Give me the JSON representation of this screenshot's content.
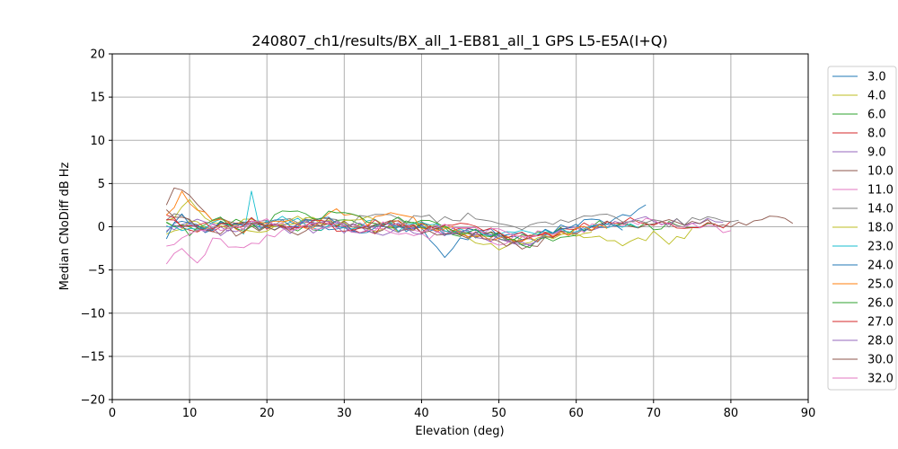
{
  "chart_data": {
    "type": "line",
    "title": "240807_ch1/results/BX_all_1-EB81_all_1 GPS L5-E5A(I+Q)",
    "xlabel": "Elevation (deg)",
    "ylabel": "Median CNoDiff dB Hz",
    "xlim": [
      0,
      90
    ],
    "ylim": [
      -20,
      20
    ],
    "xticks": [
      0,
      10,
      20,
      30,
      40,
      50,
      60,
      70,
      80,
      90
    ],
    "yticks": [
      -20,
      -15,
      -10,
      -5,
      0,
      5,
      10,
      15,
      20
    ],
    "grid": true,
    "legend_position": "right",
    "series": [
      {
        "name": "3.0",
        "color": "#1f77b4",
        "x_start": 7,
        "x_end": 69,
        "anchors": [
          [
            7,
            -0.8
          ],
          [
            9,
            0.6
          ],
          [
            12,
            -0.5
          ],
          [
            16,
            0.8
          ],
          [
            20,
            -0.3
          ],
          [
            25,
            0.4
          ],
          [
            30,
            -0.6
          ],
          [
            35,
            0.2
          ],
          [
            40,
            -0.4
          ],
          [
            43,
            -3.2
          ],
          [
            45,
            -1.2
          ],
          [
            50,
            -0.5
          ],
          [
            55,
            -1.4
          ],
          [
            60,
            0.4
          ],
          [
            65,
            0.9
          ],
          [
            69,
            2.3
          ]
        ]
      },
      {
        "name": "4.0",
        "color": "#bcbd22",
        "x_start": 7,
        "x_end": 75,
        "anchors": [
          [
            7,
            0.5
          ],
          [
            10,
            2.8
          ],
          [
            13,
            0.2
          ],
          [
            18,
            -0.6
          ],
          [
            24,
            0.8
          ],
          [
            30,
            0.2
          ],
          [
            36,
            -0.4
          ],
          [
            42,
            0.3
          ],
          [
            47,
            -0.9
          ],
          [
            52,
            -1.6
          ],
          [
            58,
            -1.1
          ],
          [
            63,
            -1.4
          ],
          [
            66,
            -2.3
          ],
          [
            70,
            -1.0
          ],
          [
            72,
            -1.7
          ],
          [
            75,
            -0.6
          ]
        ]
      },
      {
        "name": "6.0",
        "color": "#2ca02c",
        "x_start": 7,
        "x_end": 78,
        "anchors": [
          [
            7,
            0.2
          ],
          [
            10,
            -0.5
          ],
          [
            15,
            0.5
          ],
          [
            20,
            0.1
          ],
          [
            25,
            -0.3
          ],
          [
            30,
            0.6
          ],
          [
            35,
            -0.2
          ],
          [
            40,
            0.4
          ],
          [
            45,
            -0.6
          ],
          [
            50,
            -1.2
          ],
          [
            55,
            -0.9
          ],
          [
            60,
            -0.3
          ],
          [
            65,
            0.5
          ],
          [
            70,
            0.1
          ],
          [
            75,
            0.4
          ],
          [
            78,
            0.2
          ]
        ]
      },
      {
        "name": "8.0",
        "color": "#d62728",
        "x_start": 7,
        "x_end": 80,
        "anchors": [
          [
            7,
            1.0
          ],
          [
            9,
            0.3
          ],
          [
            13,
            -0.6
          ],
          [
            18,
            0.5
          ],
          [
            23,
            -0.2
          ],
          [
            28,
            0.3
          ],
          [
            33,
            -0.5
          ],
          [
            38,
            0.2
          ],
          [
            43,
            -0.3
          ],
          [
            48,
            -0.8
          ],
          [
            53,
            -1.5
          ],
          [
            58,
            -0.6
          ],
          [
            63,
            0.3
          ],
          [
            68,
            0.6
          ],
          [
            74,
            0.2
          ],
          [
            80,
            0.4
          ]
        ]
      },
      {
        "name": "9.0",
        "color": "#9467bd",
        "x_start": 7,
        "x_end": 79,
        "anchors": [
          [
            7,
            -0.3
          ],
          [
            10,
            0.8
          ],
          [
            14,
            -0.4
          ],
          [
            19,
            0.3
          ],
          [
            24,
            -0.6
          ],
          [
            29,
            0.2
          ],
          [
            34,
            -0.8
          ],
          [
            39,
            -0.2
          ],
          [
            44,
            -0.6
          ],
          [
            49,
            -1.0
          ],
          [
            54,
            -1.8
          ],
          [
            59,
            -0.5
          ],
          [
            64,
            0.2
          ],
          [
            69,
            0.8
          ],
          [
            74,
            0.5
          ],
          [
            79,
            0.9
          ]
        ]
      },
      {
        "name": "10.0",
        "color": "#8c564b",
        "x_start": 7,
        "x_end": 88,
        "anchors": [
          [
            7,
            2.0
          ],
          [
            8,
            4.6
          ],
          [
            10,
            3.8
          ],
          [
            12,
            1.2
          ],
          [
            15,
            0.3
          ],
          [
            20,
            -0.4
          ],
          [
            25,
            0.6
          ],
          [
            30,
            0.1
          ],
          [
            35,
            -0.3
          ],
          [
            40,
            0.2
          ],
          [
            45,
            -0.5
          ],
          [
            50,
            -1.2
          ],
          [
            53,
            -3.0
          ],
          [
            56,
            -1.4
          ],
          [
            60,
            -0.3
          ],
          [
            65,
            0.5
          ],
          [
            70,
            0.3
          ],
          [
            75,
            0.6
          ],
          [
            80,
            0.4
          ],
          [
            85,
            0.8
          ],
          [
            88,
            0.6
          ]
        ]
      },
      {
        "name": "11.0",
        "color": "#e377c2",
        "x_start": 7,
        "x_end": 80,
        "anchors": [
          [
            7,
            -3.8
          ],
          [
            9,
            -2.8
          ],
          [
            11,
            -4.0
          ],
          [
            13,
            -1.5
          ],
          [
            17,
            -2.8
          ],
          [
            20,
            -0.8
          ],
          [
            25,
            -0.2
          ],
          [
            30,
            0.5
          ],
          [
            35,
            -0.4
          ],
          [
            40,
            -1.2
          ],
          [
            45,
            -0.6
          ],
          [
            50,
            -1.8
          ],
          [
            55,
            -1.0
          ],
          [
            60,
            -0.4
          ],
          [
            65,
            0.2
          ],
          [
            70,
            0.6
          ],
          [
            75,
            0.2
          ],
          [
            80,
            -0.8
          ]
        ]
      },
      {
        "name": "14.0",
        "color": "#7f7f7f",
        "x_start": 7,
        "x_end": 81,
        "anchors": [
          [
            7,
            1.2
          ],
          [
            10,
            0.6
          ],
          [
            15,
            -0.2
          ],
          [
            20,
            0.4
          ],
          [
            25,
            1.0
          ],
          [
            30,
            0.6
          ],
          [
            35,
            1.0
          ],
          [
            40,
            0.7
          ],
          [
            45,
            1.2
          ],
          [
            48,
            0.8
          ],
          [
            52,
            -0.4
          ],
          [
            56,
            0.3
          ],
          [
            60,
            0.8
          ],
          [
            64,
            1.0
          ],
          [
            68,
            0.6
          ],
          [
            72,
            0.3
          ],
          [
            76,
            0.8
          ],
          [
            81,
            0.5
          ]
        ]
      },
      {
        "name": "18.0",
        "color": "#bcbd22",
        "x_start": 7,
        "x_end": 62,
        "anchors": [
          [
            7,
            -0.5
          ],
          [
            10,
            0.4
          ],
          [
            14,
            -0.3
          ],
          [
            18,
            0.6
          ],
          [
            22,
            0.1
          ],
          [
            26,
            0.8
          ],
          [
            30,
            0.3
          ],
          [
            34,
            0.9
          ],
          [
            38,
            0.2
          ],
          [
            42,
            -0.2
          ],
          [
            46,
            -1.0
          ],
          [
            49,
            -2.5
          ],
          [
            53,
            -1.6
          ],
          [
            57,
            -1.2
          ],
          [
            62,
            -0.8
          ]
        ]
      },
      {
        "name": "23.0",
        "color": "#17becf",
        "x_start": 7,
        "x_end": 68,
        "anchors": [
          [
            7,
            0.3
          ],
          [
            10,
            -0.6
          ],
          [
            14,
            0.4
          ],
          [
            17,
            -0.3
          ],
          [
            18,
            3.8
          ],
          [
            19,
            0.2
          ],
          [
            22,
            1.0
          ],
          [
            26,
            0.2
          ],
          [
            30,
            -0.4
          ],
          [
            34,
            0.4
          ],
          [
            38,
            -0.2
          ],
          [
            42,
            0.2
          ],
          [
            46,
            -0.6
          ],
          [
            50,
            -1.0
          ],
          [
            55,
            -0.8
          ],
          [
            60,
            -0.2
          ],
          [
            64,
            0.4
          ],
          [
            68,
            0.2
          ]
        ]
      },
      {
        "name": "24.0",
        "color": "#1f77b4",
        "x_start": 7,
        "x_end": 66,
        "anchors": [
          [
            7,
            -1.2
          ],
          [
            9,
            1.4
          ],
          [
            12,
            -0.3
          ],
          [
            16,
            0.5
          ],
          [
            20,
            0.9
          ],
          [
            24,
            0.3
          ],
          [
            28,
            0.8
          ],
          [
            32,
            -0.3
          ],
          [
            36,
            0.4
          ],
          [
            40,
            -0.3
          ],
          [
            44,
            -0.8
          ],
          [
            48,
            -0.3
          ],
          [
            52,
            -1.0
          ],
          [
            56,
            -0.6
          ],
          [
            60,
            -0.2
          ],
          [
            63,
            0.3
          ],
          [
            66,
            0.0
          ]
        ]
      },
      {
        "name": "25.0",
        "color": "#ff7f0e",
        "x_start": 7,
        "x_end": 64,
        "anchors": [
          [
            7,
            1.5
          ],
          [
            9,
            3.8
          ],
          [
            11,
            2.4
          ],
          [
            13,
            0.6
          ],
          [
            17,
            -0.3
          ],
          [
            21,
            0.5
          ],
          [
            25,
            0.0
          ],
          [
            29,
            1.6
          ],
          [
            33,
            0.6
          ],
          [
            37,
            1.4
          ],
          [
            40,
            0.3
          ],
          [
            44,
            -0.4
          ],
          [
            48,
            -0.9
          ],
          [
            52,
            -1.8
          ],
          [
            56,
            -1.0
          ],
          [
            60,
            -0.4
          ],
          [
            64,
            0.2
          ]
        ]
      },
      {
        "name": "26.0",
        "color": "#2ca02c",
        "x_start": 7,
        "x_end": 60,
        "anchors": [
          [
            7,
            0.6
          ],
          [
            10,
            -0.8
          ],
          [
            14,
            0.6
          ],
          [
            18,
            -0.4
          ],
          [
            22,
            1.6
          ],
          [
            26,
            1.0
          ],
          [
            30,
            1.8
          ],
          [
            34,
            0.6
          ],
          [
            38,
            0.9
          ],
          [
            42,
            0.0
          ],
          [
            46,
            -0.5
          ],
          [
            50,
            -1.2
          ],
          [
            54,
            -2.0
          ],
          [
            57,
            -1.4
          ],
          [
            60,
            -1.0
          ]
        ]
      },
      {
        "name": "27.0",
        "color": "#d62728",
        "x_start": 7,
        "x_end": 58,
        "anchors": [
          [
            7,
            0.8
          ],
          [
            10,
            0.2
          ],
          [
            14,
            -0.2
          ],
          [
            18,
            0.6
          ],
          [
            22,
            -0.3
          ],
          [
            26,
            0.4
          ],
          [
            30,
            -0.2
          ],
          [
            34,
            0.5
          ],
          [
            38,
            0.0
          ],
          [
            42,
            -0.4
          ],
          [
            46,
            0.2
          ],
          [
            50,
            -0.6
          ],
          [
            54,
            -1.3
          ],
          [
            58,
            -0.8
          ]
        ]
      },
      {
        "name": "28.0",
        "color": "#9467bd",
        "x_start": 7,
        "x_end": 56,
        "anchors": [
          [
            7,
            -0.6
          ],
          [
            10,
            0.3
          ],
          [
            14,
            -0.5
          ],
          [
            18,
            0.2
          ],
          [
            22,
            -0.4
          ],
          [
            26,
            0.6
          ],
          [
            30,
            -0.3
          ],
          [
            34,
            0.3
          ],
          [
            38,
            -0.6
          ],
          [
            42,
            -0.2
          ],
          [
            46,
            -0.8
          ],
          [
            50,
            -1.4
          ],
          [
            53,
            -2.0
          ],
          [
            56,
            -1.2
          ]
        ]
      },
      {
        "name": "30.0",
        "color": "#8c564b",
        "x_start": 7,
        "x_end": 54,
        "anchors": [
          [
            7,
            1.8
          ],
          [
            9,
            1.0
          ],
          [
            12,
            0.0
          ],
          [
            16,
            -0.6
          ],
          [
            20,
            0.2
          ],
          [
            24,
            -0.5
          ],
          [
            28,
            0.5
          ],
          [
            32,
            -0.2
          ],
          [
            36,
            0.3
          ],
          [
            40,
            -0.3
          ],
          [
            44,
            -0.8
          ],
          [
            48,
            -1.1
          ],
          [
            51,
            -1.8
          ],
          [
            54,
            -1.3
          ]
        ]
      },
      {
        "name": "32.0",
        "color": "#e377c2",
        "x_start": 7,
        "x_end": 55,
        "anchors": [
          [
            7,
            -2.5
          ],
          [
            10,
            -1.2
          ],
          [
            13,
            0.3
          ],
          [
            16,
            -0.4
          ],
          [
            20,
            0.6
          ],
          [
            24,
            -0.2
          ],
          [
            28,
            0.4
          ],
          [
            32,
            -0.5
          ],
          [
            36,
            0.3
          ],
          [
            40,
            -0.2
          ],
          [
            44,
            0.4
          ],
          [
            48,
            -0.4
          ],
          [
            52,
            -0.9
          ],
          [
            55,
            -0.5
          ]
        ]
      }
    ]
  }
}
